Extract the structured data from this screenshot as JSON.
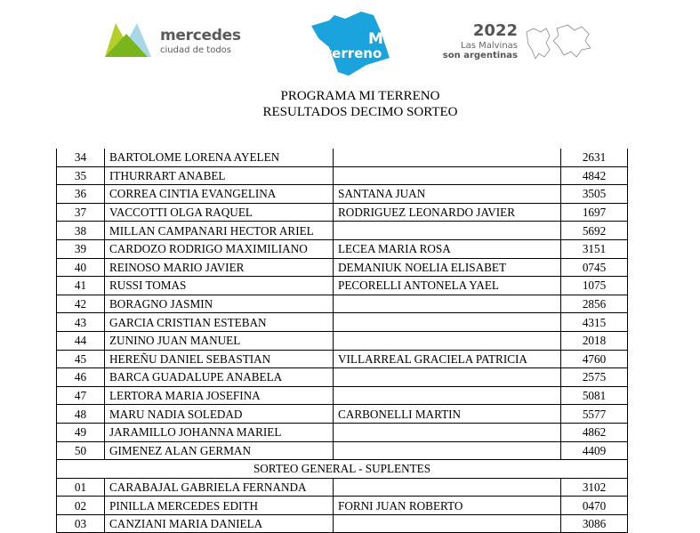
{
  "header": {
    "logo_mercedes": {
      "word": "mercedes",
      "tagline": "ciudad de todos"
    },
    "logo_mi_terreno": {
      "line1": "Mi",
      "line2": "terreno",
      "color": "#1ba3dd"
    },
    "logo_malvinas": {
      "year": "2022",
      "line1": "Las Malvinas",
      "line2": "son argentinas"
    },
    "title_line1": "PROGRAMA MI TERRENO",
    "title_line2": "RESULTADOS DECIMO SORTEO"
  },
  "rows": [
    {
      "num": "34",
      "titular": "BARTOLOME LORENA AYELEN",
      "cotitular": "",
      "code": "2631"
    },
    {
      "num": "35",
      "titular": "ITHURRART ANABEL",
      "cotitular": "",
      "code": "4842"
    },
    {
      "num": "36",
      "titular": "CORREA CINTIA EVANGELINA",
      "cotitular": "SANTANA JUAN",
      "code": "3505"
    },
    {
      "num": "37",
      "titular": "VACCOTTI OLGA RAQUEL",
      "cotitular": "RODRIGUEZ LEONARDO JAVIER",
      "code": "1697"
    },
    {
      "num": "38",
      "titular": "MILLAN CAMPANARI HECTOR ARIEL",
      "cotitular": "",
      "code": "5692"
    },
    {
      "num": "39",
      "titular": "CARDOZO RODRIGO MAXIMILIANO",
      "cotitular": "LECEA MARIA ROSA",
      "code": "3151"
    },
    {
      "num": "40",
      "titular": "REINOSO MARIO JAVIER",
      "cotitular": "DEMANIUK NOELIA ELISABET",
      "code": "0745"
    },
    {
      "num": "41",
      "titular": "RUSSI TOMAS",
      "cotitular": "PECORELLI ANTONELA YAEL",
      "code": "1075"
    },
    {
      "num": "42",
      "titular": "BORAGNO JASMIN",
      "cotitular": "",
      "code": "2856"
    },
    {
      "num": "43",
      "titular": "GARCIA CRISTIAN ESTEBAN",
      "cotitular": "",
      "code": "4315"
    },
    {
      "num": "44",
      "titular": "ZUNINO JUAN MANUEL",
      "cotitular": "",
      "code": "2018"
    },
    {
      "num": "45",
      "titular": "HEREÑU DANIEL SEBASTIAN",
      "cotitular": "VILLARREAL GRACIELA PATRICIA",
      "code": "4760"
    },
    {
      "num": "46",
      "titular": "BARCA GUADALUPE ANABELA",
      "cotitular": "",
      "code": "2575"
    },
    {
      "num": "47",
      "titular": "LERTORA MARIA JOSEFINA",
      "cotitular": "",
      "code": "5081"
    },
    {
      "num": "48",
      "titular": "MARU NADIA SOLEDAD",
      "cotitular": "CARBONELLI MARTIN",
      "code": "5577"
    },
    {
      "num": "49",
      "titular": "JARAMILLO JOHANNA MARIEL",
      "cotitular": "",
      "code": "4862"
    },
    {
      "num": "50",
      "titular": "GIMENEZ ALAN GERMAN",
      "cotitular": "",
      "code": "4409"
    }
  ],
  "section_suplentes": "SORTEO GENERAL - SUPLENTES",
  "suplentes": [
    {
      "num": "01",
      "titular": "CARABAJAL GABRIELA FERNANDA",
      "cotitular": "",
      "code": "3102"
    },
    {
      "num": "02",
      "titular": "PINILLA MERCEDES EDITH",
      "cotitular": "FORNI JUAN ROBERTO",
      "code": "0470"
    },
    {
      "num": "03",
      "titular": "CANZIANI MARIA DANIELA",
      "cotitular": "",
      "code": "3086"
    }
  ]
}
